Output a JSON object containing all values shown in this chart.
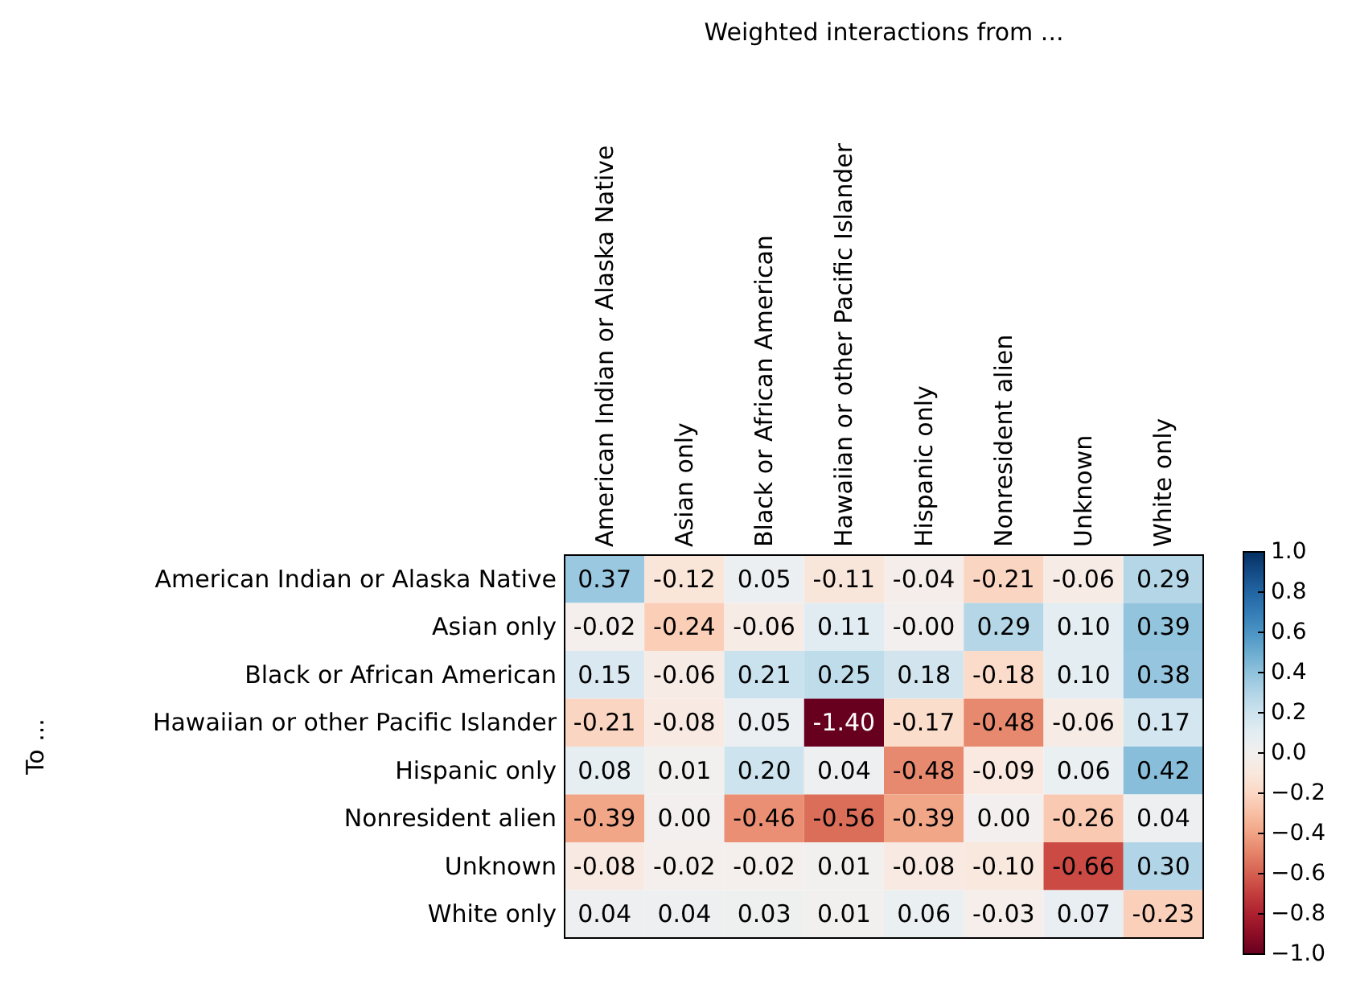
{
  "chart_data": {
    "type": "heatmap",
    "title": "Weighted interactions from ...",
    "ylabel": "To ...",
    "categories": [
      "American Indian or Alaska Native",
      "Asian only",
      "Black or African American",
      "Hawaiian or other Pacific Islander",
      "Hispanic only",
      "Nonresident alien",
      "Unknown",
      "White only"
    ],
    "y_categories": [
      "American Indian or Alaska Native",
      "Asian only",
      "Black or African American",
      "Hawaiian or other Pacific Islander",
      "Hispanic only",
      "Nonresident alien",
      "Unknown",
      "White only"
    ],
    "cells": [
      [
        0.37,
        -0.12,
        0.05,
        -0.11,
        -0.04,
        -0.21,
        -0.06,
        0.29
      ],
      [
        -0.02,
        -0.24,
        -0.06,
        0.11,
        -0.0,
        0.29,
        0.1,
        0.39
      ],
      [
        0.15,
        -0.06,
        0.21,
        0.25,
        0.18,
        -0.18,
        0.1,
        0.38
      ],
      [
        -0.21,
        -0.08,
        0.05,
        -1.4,
        -0.17,
        -0.48,
        -0.06,
        0.17
      ],
      [
        0.08,
        0.01,
        0.2,
        0.04,
        -0.48,
        -0.09,
        0.06,
        0.42
      ],
      [
        -0.39,
        0.0,
        -0.46,
        -0.56,
        -0.39,
        0.0,
        -0.26,
        0.04
      ],
      [
        -0.08,
        -0.02,
        -0.02,
        0.01,
        -0.08,
        -0.1,
        -0.66,
        0.3
      ],
      [
        0.04,
        0.04,
        0.03,
        0.01,
        0.06,
        -0.03,
        0.07,
        -0.23
      ]
    ],
    "cell_labels": [
      [
        "0.37",
        "-0.12",
        "0.05",
        "-0.11",
        "-0.04",
        "-0.21",
        "-0.06",
        "0.29"
      ],
      [
        "-0.02",
        "-0.24",
        "-0.06",
        "0.11",
        "-0.00",
        "0.29",
        "0.10",
        "0.39"
      ],
      [
        "0.15",
        "-0.06",
        "0.21",
        "0.25",
        "0.18",
        "-0.18",
        "0.10",
        "0.38"
      ],
      [
        "-0.21",
        "-0.08",
        "0.05",
        "-1.40",
        "-0.17",
        "-0.48",
        "-0.06",
        "0.17"
      ],
      [
        "0.08",
        "0.01",
        "0.20",
        "0.04",
        "-0.48",
        "-0.09",
        "0.06",
        "0.42"
      ],
      [
        "-0.39",
        "0.00",
        "-0.46",
        "-0.56",
        "-0.39",
        "0.00",
        "-0.26",
        "0.04"
      ],
      [
        "-0.08",
        "-0.02",
        "-0.02",
        "0.01",
        "-0.08",
        "-0.10",
        "-0.66",
        "0.30"
      ],
      [
        "0.04",
        "0.04",
        "0.03",
        "0.01",
        "0.06",
        "-0.03",
        "0.07",
        "-0.23"
      ]
    ],
    "clim": [
      -1,
      1
    ],
    "cticks": [
      {
        "value": -1,
        "label": "−1.0"
      },
      {
        "value": -0.8,
        "label": "−0.8"
      },
      {
        "value": -0.6,
        "label": "−0.6"
      },
      {
        "value": -0.4,
        "label": "−0.4"
      },
      {
        "value": -0.2,
        "label": "−0.2"
      },
      {
        "value": 0,
        "label": "0.0"
      },
      {
        "value": 0.2,
        "label": "0.2"
      },
      {
        "value": 0.4,
        "label": "0.4"
      },
      {
        "value": 0.6,
        "label": "0.6"
      },
      {
        "value": 0.8,
        "label": "0.8"
      },
      {
        "value": 1,
        "label": "1.0"
      }
    ]
  }
}
